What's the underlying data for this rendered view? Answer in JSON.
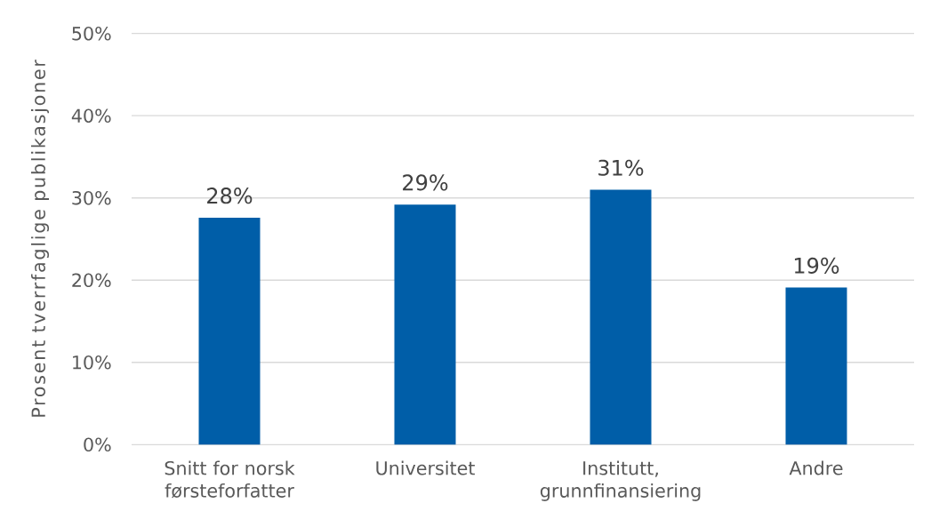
{
  "chart_data": {
    "type": "bar",
    "ylabel": "Prosent tverrfaglige publikasjoner",
    "categories": [
      "Snitt for norsk førsteforfatter",
      "Universitet",
      "Institutt, grunnfinansiering",
      "Andre"
    ],
    "values": [
      27.6,
      29.2,
      31.0,
      19.1
    ],
    "value_labels": [
      "28%",
      "29%",
      "31%",
      "19%"
    ],
    "color": "#005ea8",
    "ylim": [
      0,
      50
    ],
    "yticks": [
      {
        "value": 0,
        "label": "0%"
      },
      {
        "value": 10,
        "label": "10%"
      },
      {
        "value": 20,
        "label": "20%"
      },
      {
        "value": 30,
        "label": "30%"
      },
      {
        "value": 40,
        "label": "40%"
      },
      {
        "value": 50,
        "label": "50%"
      }
    ],
    "grid": "y"
  }
}
